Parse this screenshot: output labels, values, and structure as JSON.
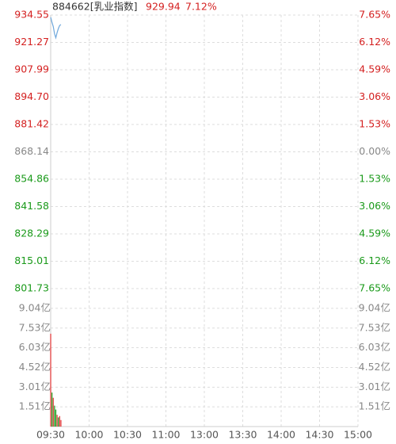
{
  "chart_data": [
    {
      "type": "line",
      "header": {
        "name": "884662[乳业指数]",
        "price": 929.94,
        "change": {
          "value": 7.12,
          "label": "7.12%"
        }
      },
      "values": [
        933.5,
        931.0,
        929.0,
        925.5,
        923.5,
        926.0,
        928.0,
        929.5,
        929.94
      ],
      "color": "#6fa8dc",
      "xlim": [
        0,
        240
      ],
      "xticks": [
        {
          "value": 0,
          "label": "09:30"
        },
        {
          "value": 30,
          "label": "10:00"
        },
        {
          "value": 60,
          "label": "10:30"
        },
        {
          "value": 90,
          "label": "11:00"
        },
        {
          "value": 120,
          "label": "13:00"
        },
        {
          "value": 150,
          "label": "13:30"
        },
        {
          "value": 180,
          "label": "14:00"
        },
        {
          "value": 210,
          "label": "14:30"
        },
        {
          "value": 240,
          "label": "15:00"
        }
      ],
      "ylim": [
        801.73,
        934.55
      ],
      "yticks": [
        {
          "value": 934.55,
          "label": "934.55"
        },
        {
          "value": 921.27,
          "label": "921.27"
        },
        {
          "value": 907.99,
          "label": "907.99"
        },
        {
          "value": 894.7,
          "label": "894.70"
        },
        {
          "value": 881.42,
          "label": "881.42"
        },
        {
          "value": 868.14,
          "label": "868.14"
        },
        {
          "value": 854.86,
          "label": "854.86"
        },
        {
          "value": 841.58,
          "label": "841.58"
        },
        {
          "value": 828.29,
          "label": "828.29"
        },
        {
          "value": 815.01,
          "label": "815.01"
        },
        {
          "value": 801.73,
          "label": "801.73"
        }
      ],
      "y2lim": [
        -7.65,
        7.65
      ],
      "y2ticks": [
        {
          "value": 7.65,
          "label": "7.65%"
        },
        {
          "value": 6.12,
          "label": "6.12%"
        },
        {
          "value": 4.59,
          "label": "4.59%"
        },
        {
          "value": 3.06,
          "label": "3.06%"
        },
        {
          "value": 1.53,
          "label": "1.53%"
        },
        {
          "value": 0,
          "label": "0.00%"
        },
        {
          "value": -1.53,
          "label": "1.53%"
        },
        {
          "value": -3.06,
          "label": "3.06%"
        },
        {
          "value": -4.59,
          "label": "4.59%"
        },
        {
          "value": -6.12,
          "label": "6.12%"
        },
        {
          "value": -7.65,
          "label": "7.65%"
        }
      ],
      "grid": true
    },
    {
      "type": "bar",
      "values": [
        7.1,
        2.6,
        2.2,
        1.6,
        1.3,
        0.9,
        0.7,
        0.8,
        0.5
      ],
      "colors": [
        "#e03030",
        "#1a9a1a",
        "#e03030",
        "#1a9a1a",
        "#1a9a1a",
        "#e03030",
        "#1a9a1a",
        "#e03030",
        "#e03030"
      ],
      "xlim": [
        0,
        240
      ],
      "ylim": [
        0,
        10.55
      ],
      "yticks": [
        {
          "value": 9.04,
          "label": "9.04亿"
        },
        {
          "value": 7.53,
          "label": "7.53亿"
        },
        {
          "value": 6.03,
          "label": "6.03亿"
        },
        {
          "value": 4.52,
          "label": "4.52亿"
        },
        {
          "value": 3.01,
          "label": "3.01亿"
        },
        {
          "value": 1.51,
          "label": "1.51亿"
        }
      ],
      "grid": true
    }
  ]
}
